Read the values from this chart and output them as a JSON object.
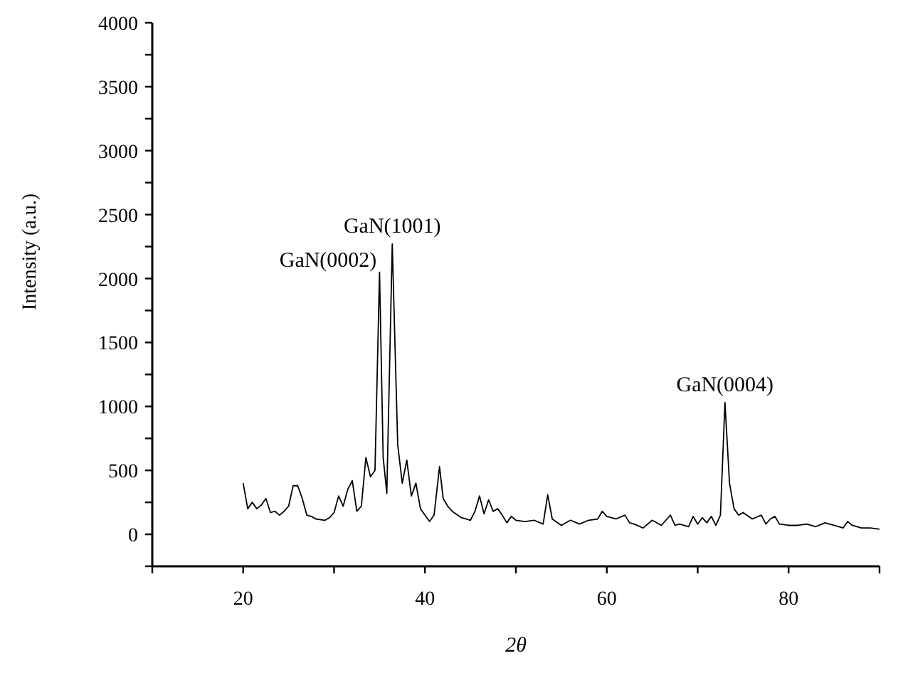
{
  "chart_data": {
    "type": "line",
    "xlabel": "2θ",
    "ylabel": "Intensity (a.u.)",
    "xlim": [
      10,
      90
    ],
    "xticks": [
      {
        "value": 10,
        "label": null
      },
      20,
      {
        "value": 30,
        "label": null
      },
      40,
      {
        "value": 50,
        "label": null
      },
      60,
      {
        "value": 70,
        "label": null
      },
      80,
      {
        "value": 90,
        "label": null
      }
    ],
    "ylim": [
      -250,
      4000
    ],
    "yticks": [
      {
        "value": -250,
        "label": null
      },
      0,
      {
        "value": 250,
        "label": null
      },
      500,
      {
        "value": 750,
        "label": null
      },
      1000,
      {
        "value": 1250,
        "label": null
      },
      1500,
      {
        "value": 1750,
        "label": null
      },
      2000,
      {
        "value": 2250,
        "label": null
      },
      2500,
      {
        "value": 2750,
        "label": null
      },
      3000,
      {
        "value": 3250,
        "label": null
      },
      3500,
      {
        "value": 3750,
        "label": null
      },
      4000
    ],
    "grid": false,
    "marker": "none",
    "line_style": "solid",
    "series": [
      {
        "color": "#000000",
        "x": [
          20,
          20.5,
          21,
          21.5,
          22,
          22.5,
          23,
          23.5,
          24,
          24.5,
          25,
          25.5,
          26,
          26.5,
          27,
          27.5,
          28,
          29,
          29.5,
          30,
          30.5,
          31,
          31.5,
          32,
          32.5,
          33,
          33.5,
          34,
          34.5,
          35,
          35.4,
          35.8,
          36.4,
          37,
          37.5,
          38,
          38.5,
          39,
          39.5,
          40,
          40.5,
          41,
          41.6,
          42,
          42.5,
          43,
          44,
          44.5,
          45,
          45.5,
          46,
          46.5,
          47,
          47.5,
          48,
          48.5,
          49,
          49.5,
          50,
          51,
          52,
          53,
          53.5,
          54,
          55,
          56,
          57,
          58,
          59,
          59.5,
          60,
          61,
          62,
          62.5,
          63,
          64,
          65,
          66,
          67,
          67.5,
          68,
          69,
          69.5,
          70,
          70.5,
          71,
          71.5,
          72,
          72.5,
          73,
          73.5,
          74,
          74.5,
          75,
          76,
          77,
          77.5,
          78,
          78.5,
          79,
          80,
          81,
          82,
          83,
          84,
          85,
          86,
          86.5,
          87,
          88,
          89,
          90
        ],
        "values": [
          400,
          200,
          250,
          200,
          230,
          280,
          170,
          180,
          150,
          180,
          220,
          380,
          380,
          280,
          150,
          140,
          120,
          110,
          130,
          170,
          300,
          220,
          350,
          420,
          180,
          220,
          600,
          450,
          500,
          2050,
          600,
          320,
          2270,
          700,
          400,
          580,
          300,
          400,
          200,
          150,
          100,
          150,
          530,
          280,
          220,
          180,
          130,
          120,
          110,
          180,
          300,
          160,
          270,
          180,
          200,
          150,
          90,
          140,
          110,
          100,
          110,
          80,
          310,
          120,
          70,
          110,
          80,
          110,
          120,
          180,
          140,
          120,
          150,
          90,
          80,
          50,
          110,
          70,
          150,
          70,
          80,
          60,
          140,
          80,
          130,
          90,
          140,
          70,
          150,
          1030,
          400,
          200,
          150,
          170,
          120,
          150,
          80,
          120,
          140,
          80,
          70,
          70,
          80,
          60,
          90,
          70,
          50,
          100,
          70,
          50,
          50,
          40
        ]
      }
    ],
    "annotations": [
      {
        "text": "GaN(0002)",
        "x": 35,
        "y": 2050
      },
      {
        "text": "GaN(1001)",
        "x": 36.4,
        "y": 2270
      },
      {
        "text": "GaN(0004)",
        "x": 73,
        "y": 1030
      }
    ]
  }
}
